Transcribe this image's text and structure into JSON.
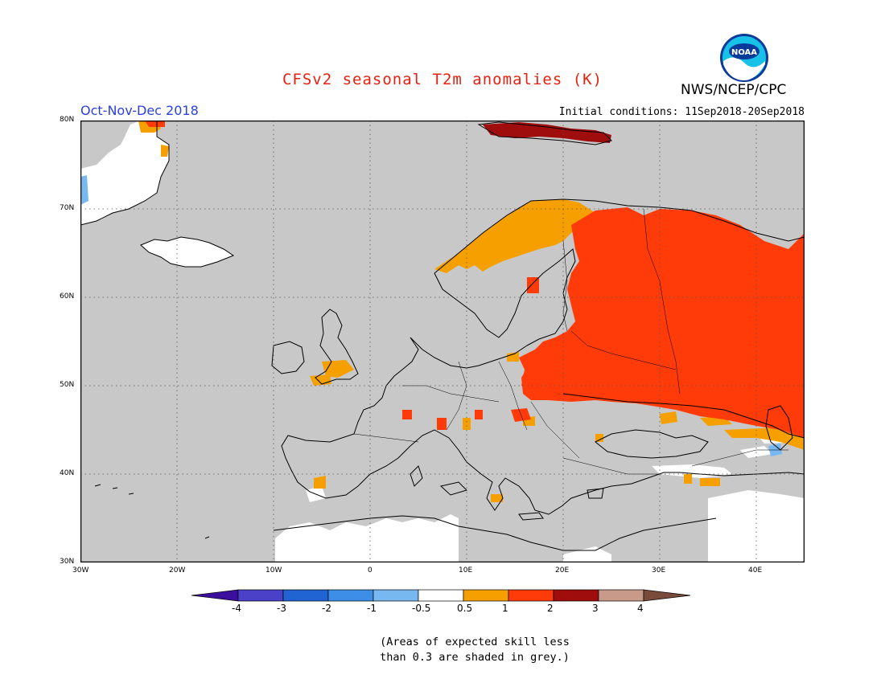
{
  "title": "CFSv2 seasonal T2m anomalies (K)",
  "agency": "NWS/NCEP/CPC",
  "logo_text": "NOAA",
  "period": "Oct-Nov-Dec 2018",
  "initial_conditions": "Initial conditions: 11Sep2018-20Sep2018",
  "lat_ticks": [
    "80N",
    "70N",
    "60N",
    "50N",
    "40N",
    "30N"
  ],
  "lon_ticks": [
    "30W",
    "20W",
    "10W",
    "0",
    "10E",
    "20E",
    "30E",
    "40E"
  ],
  "colorbar": {
    "labels": [
      "-4",
      "-3",
      "-2",
      "-1",
      "-0.5",
      "0.5",
      "1",
      "2",
      "3",
      "4"
    ],
    "colors": [
      "#3a0f9c",
      "#4b40c8",
      "#1f64d2",
      "#3c8ee6",
      "#78b8f0",
      "#ffffff",
      "#f5a000",
      "#ff3b0a",
      "#a00d0d",
      "#c79a8a",
      "#7a4a3a"
    ]
  },
  "legend_note_line1": "(Areas of expected skill less",
  "legend_note_line2": "than 0.3 are shaded in grey.)",
  "colors": {
    "grey_skill_mask": "#c8c8c8",
    "anomaly_05_1": "#f5a000",
    "anomaly_1_2": "#ff3b0a",
    "anomaly_2_3": "#a00d0d",
    "anomaly_neg": "#78b8f0",
    "title_red": "#e8200f",
    "period_blue": "#2b3fe0"
  }
}
